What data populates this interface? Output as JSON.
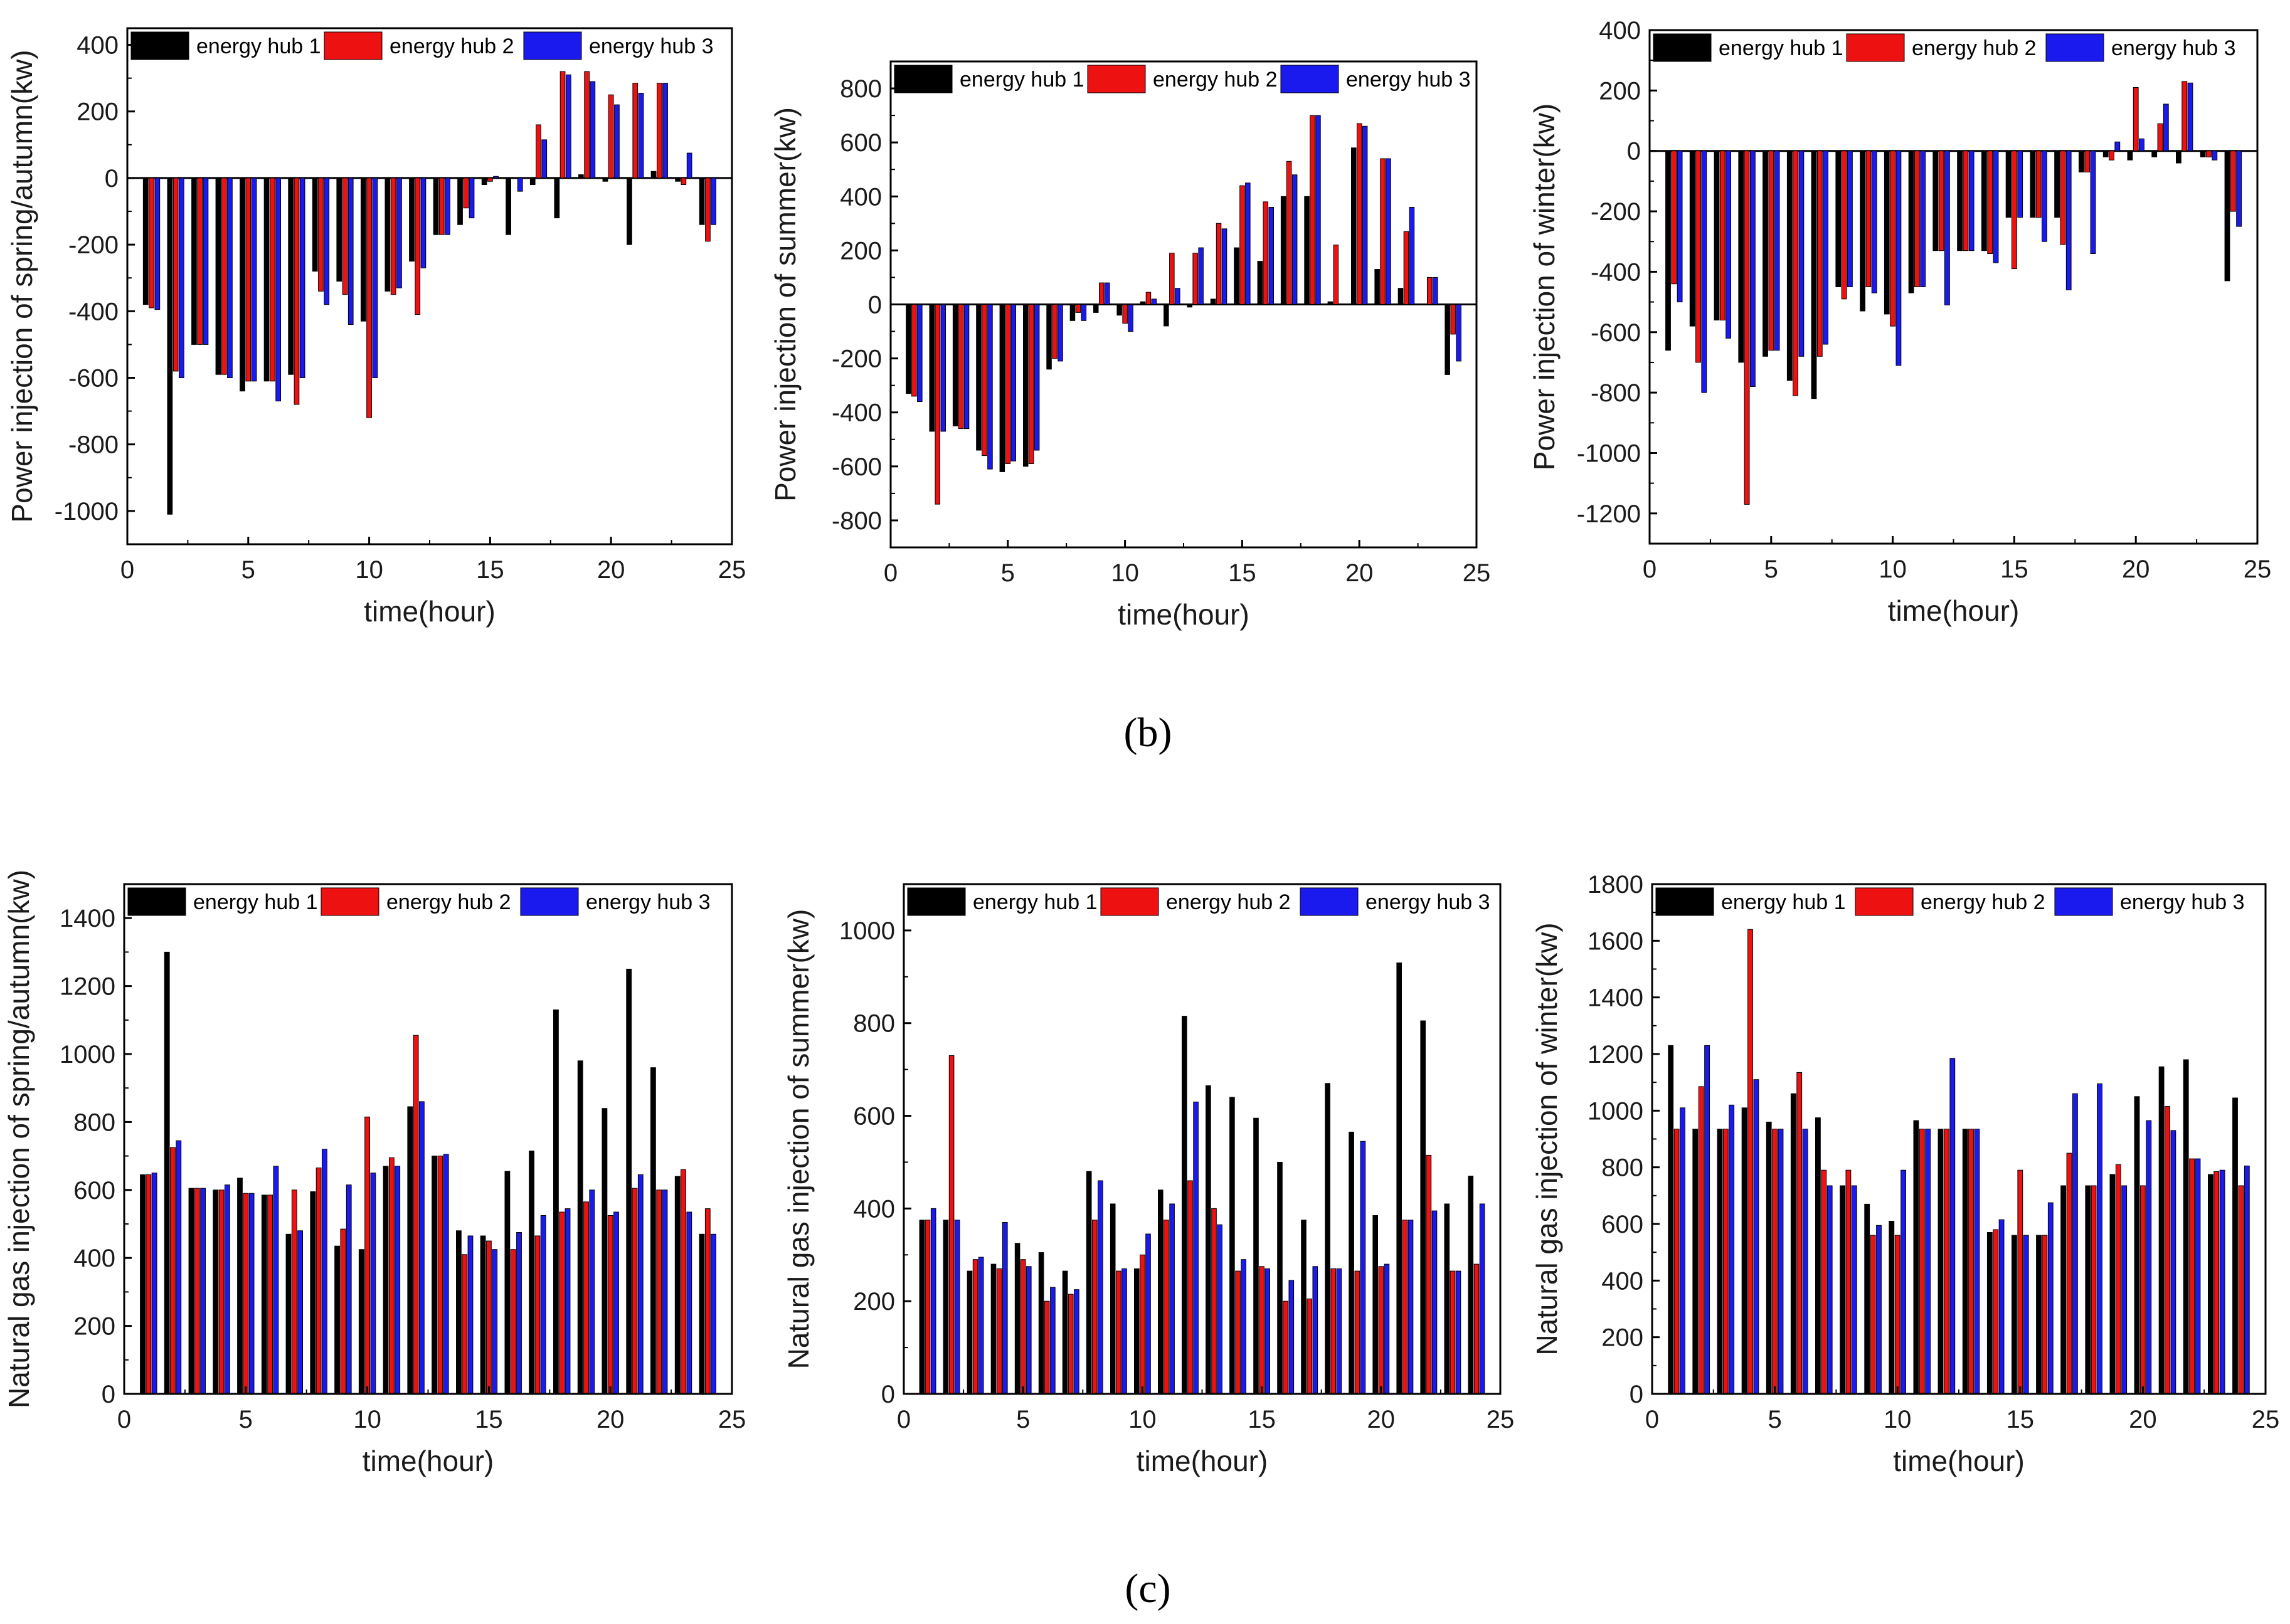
{
  "captions": {
    "b": "(b)",
    "c": "(c)"
  },
  "colors": {
    "energy hub 1": "#000000",
    "energy hub 2": "#ee1111",
    "energy hub 3": "#1a1aee"
  },
  "chart_data": [
    {
      "id": "b-spring",
      "type": "bar",
      "title": "",
      "xlabel": "time(hour)",
      "ylabel": "Power injection of spring/autumn(kw)",
      "xlim": [
        0,
        25
      ],
      "ylim": [
        -1100,
        450
      ],
      "xticks": [
        0,
        5,
        10,
        15,
        20,
        25
      ],
      "yticks": [
        -1000,
        -800,
        -600,
        -400,
        -200,
        0,
        200,
        400
      ],
      "legend": [
        "energy hub 1",
        "energy hub 2",
        "energy hub 3"
      ],
      "legend_position": "top",
      "x": [
        1,
        2,
        3,
        4,
        5,
        6,
        7,
        8,
        9,
        10,
        11,
        12,
        13,
        14,
        15,
        16,
        17,
        18,
        19,
        20,
        21,
        22,
        23,
        24
      ],
      "series": [
        {
          "name": "energy hub 1",
          "values": [
            -380,
            -1010,
            -500,
            -590,
            -640,
            -610,
            -590,
            -280,
            -310,
            -430,
            -340,
            -250,
            -170,
            -140,
            -20,
            -170,
            -20,
            -120,
            10,
            -10,
            -200,
            20,
            -10,
            -140
          ]
        },
        {
          "name": "energy hub 2",
          "values": [
            -390,
            -580,
            -500,
            -590,
            -610,
            -610,
            -680,
            -340,
            -350,
            -720,
            -350,
            -410,
            -170,
            -90,
            -10,
            0,
            160,
            320,
            320,
            250,
            285,
            285,
            -20,
            -190
          ]
        },
        {
          "name": "energy hub 3",
          "values": [
            -395,
            -600,
            -500,
            -600,
            -610,
            -670,
            -600,
            -380,
            -440,
            -600,
            -330,
            -270,
            -170,
            -120,
            5,
            -40,
            115,
            310,
            290,
            220,
            255,
            285,
            75,
            -140
          ]
        }
      ]
    },
    {
      "id": "b-summer",
      "type": "bar",
      "title": "",
      "xlabel": "time(hour)",
      "ylabel": "Power injection of summer(kw)",
      "xlim": [
        0,
        25
      ],
      "ylim": [
        -900,
        900
      ],
      "xticks": [
        0,
        5,
        10,
        15,
        20,
        25
      ],
      "yticks": [
        -800,
        -600,
        -400,
        -200,
        0,
        200,
        400,
        600,
        800
      ],
      "legend": [
        "energy hub 1",
        "energy hub 2",
        "energy hub 3"
      ],
      "legend_position": "top",
      "x": [
        1,
        2,
        3,
        4,
        5,
        6,
        7,
        8,
        9,
        10,
        11,
        12,
        13,
        14,
        15,
        16,
        17,
        18,
        19,
        20,
        21,
        22,
        23,
        24
      ],
      "series": [
        {
          "name": "energy hub 1",
          "values": [
            -330,
            -470,
            -450,
            -540,
            -620,
            -600,
            -240,
            -60,
            -30,
            -40,
            10,
            -80,
            -10,
            20,
            210,
            160,
            400,
            400,
            10,
            580,
            130,
            60,
            0,
            -260
          ]
        },
        {
          "name": "energy hub 2",
          "values": [
            -340,
            -740,
            -460,
            -560,
            -590,
            -590,
            -200,
            -30,
            80,
            -70,
            45,
            190,
            190,
            300,
            440,
            380,
            530,
            700,
            220,
            670,
            540,
            270,
            100,
            -110
          ]
        },
        {
          "name": "energy hub 3",
          "values": [
            -360,
            -470,
            -460,
            -610,
            -580,
            -540,
            -210,
            -60,
            80,
            -100,
            20,
            60,
            210,
            280,
            450,
            360,
            480,
            700,
            0,
            660,
            540,
            360,
            100,
            -210
          ]
        }
      ]
    },
    {
      "id": "b-winter",
      "type": "bar",
      "title": "",
      "xlabel": "time(hour)",
      "ylabel": "Power injection of winter(kw)",
      "xlim": [
        0,
        25
      ],
      "ylim": [
        -1300,
        400
      ],
      "xticks": [
        0,
        5,
        10,
        15,
        20,
        25
      ],
      "yticks": [
        -1200,
        -1000,
        -800,
        -600,
        -400,
        -200,
        0,
        200,
        400
      ],
      "legend": [
        "energy hub 1",
        "energy hub 2",
        "energy hub 3"
      ],
      "legend_position": "top",
      "x": [
        1,
        2,
        3,
        4,
        5,
        6,
        7,
        8,
        9,
        10,
        11,
        12,
        13,
        14,
        15,
        16,
        17,
        18,
        19,
        20,
        21,
        22,
        23,
        24
      ],
      "series": [
        {
          "name": "energy hub 1",
          "values": [
            -660,
            -580,
            -560,
            -700,
            -680,
            -760,
            -820,
            -450,
            -530,
            -540,
            -470,
            -330,
            -330,
            -330,
            -220,
            -220,
            -220,
            -70,
            -20,
            -30,
            -20,
            -40,
            -20,
            -430
          ]
        },
        {
          "name": "energy hub 2",
          "values": [
            -440,
            -700,
            -560,
            -1170,
            -660,
            -810,
            -680,
            -490,
            -450,
            -580,
            -450,
            -330,
            -330,
            -340,
            -390,
            -220,
            -310,
            -70,
            -30,
            210,
            90,
            230,
            -20,
            -200
          ]
        },
        {
          "name": "energy hub 3",
          "values": [
            -500,
            -800,
            -620,
            -780,
            -660,
            -680,
            -640,
            -450,
            -470,
            -710,
            -450,
            -510,
            -330,
            -370,
            -220,
            -300,
            -460,
            -340,
            30,
            40,
            155,
            225,
            -30,
            -250
          ]
        }
      ]
    },
    {
      "id": "c-spring",
      "type": "bar",
      "title": "",
      "xlabel": "time(hour)",
      "ylabel": "Natural gas injection of spring/autumn(kw)",
      "xlim": [
        0,
        25
      ],
      "ylim": [
        0,
        1500
      ],
      "xticks": [
        0,
        5,
        10,
        15,
        20,
        25
      ],
      "yticks": [
        0,
        200,
        400,
        600,
        800,
        1000,
        1200,
        1400
      ],
      "legend": [
        "energy hub 1",
        "energy hub 2",
        "energy hub 3"
      ],
      "legend_position": "top",
      "x": [
        1,
        2,
        3,
        4,
        5,
        6,
        7,
        8,
        9,
        10,
        11,
        12,
        13,
        14,
        15,
        16,
        17,
        18,
        19,
        20,
        21,
        22,
        23,
        24
      ],
      "series": [
        {
          "name": "energy hub 1",
          "values": [
            645,
            1300,
            605,
            600,
            635,
            585,
            470,
            595,
            435,
            425,
            670,
            845,
            700,
            480,
            465,
            655,
            715,
            1130,
            980,
            840,
            1250,
            960,
            640,
            470
          ]
        },
        {
          "name": "energy hub 2",
          "values": [
            645,
            725,
            605,
            600,
            590,
            585,
            600,
            665,
            485,
            815,
            695,
            1055,
            700,
            410,
            450,
            425,
            465,
            535,
            565,
            525,
            605,
            600,
            660,
            545
          ]
        },
        {
          "name": "energy hub 3",
          "values": [
            650,
            745,
            605,
            615,
            590,
            670,
            480,
            720,
            615,
            650,
            670,
            860,
            705,
            465,
            425,
            475,
            525,
            545,
            600,
            535,
            645,
            600,
            535,
            470
          ]
        }
      ]
    },
    {
      "id": "c-summer",
      "type": "bar",
      "title": "",
      "xlabel": "time(hour)",
      "ylabel": "Natural gas injection of summer(kw)",
      "xlim": [
        0,
        25
      ],
      "ylim": [
        0,
        1100
      ],
      "xticks": [
        0,
        5,
        10,
        15,
        20,
        25
      ],
      "yticks": [
        0,
        200,
        400,
        600,
        800,
        1000
      ],
      "legend": [
        "energy hub 1",
        "energy hub 2",
        "energy hub 3"
      ],
      "legend_position": "top",
      "x": [
        1,
        2,
        3,
        4,
        5,
        6,
        7,
        8,
        9,
        10,
        11,
        12,
        13,
        14,
        15,
        16,
        17,
        18,
        19,
        20,
        21,
        22,
        23,
        24
      ],
      "series": [
        {
          "name": "energy hub 1",
          "values": [
            375,
            375,
            265,
            280,
            325,
            305,
            265,
            480,
            410,
            270,
            440,
            815,
            665,
            640,
            595,
            500,
            375,
            670,
            565,
            385,
            930,
            805,
            410,
            470
          ]
        },
        {
          "name": "energy hub 2",
          "values": [
            375,
            730,
            290,
            270,
            290,
            200,
            215,
            375,
            265,
            300,
            375,
            460,
            400,
            265,
            275,
            200,
            205,
            270,
            265,
            275,
            375,
            515,
            265,
            280
          ]
        },
        {
          "name": "energy hub 3",
          "values": [
            400,
            375,
            295,
            370,
            275,
            230,
            225,
            460,
            270,
            345,
            410,
            630,
            365,
            290,
            270,
            245,
            275,
            270,
            545,
            280,
            375,
            395,
            265,
            410
          ]
        }
      ]
    },
    {
      "id": "c-winter",
      "type": "bar",
      "title": "",
      "xlabel": "time(hour)",
      "ylabel": "Natural gas injection of winter(kw)",
      "xlim": [
        0,
        25
      ],
      "ylim": [
        0,
        1800
      ],
      "xticks": [
        0,
        5,
        10,
        15,
        20,
        25
      ],
      "yticks": [
        0,
        200,
        400,
        600,
        800,
        1000,
        1200,
        1400,
        1600,
        1800
      ],
      "legend": [
        "energy hub 1",
        "energy hub 2",
        "energy hub 3"
      ],
      "legend_position": "top",
      "x": [
        1,
        2,
        3,
        4,
        5,
        6,
        7,
        8,
        9,
        10,
        11,
        12,
        13,
        14,
        15,
        16,
        17,
        18,
        19,
        20,
        21,
        22,
        23,
        24
      ],
      "series": [
        {
          "name": "energy hub 1",
          "values": [
            1230,
            935,
            935,
            1010,
            960,
            1060,
            975,
            735,
            670,
            610,
            965,
            935,
            935,
            570,
            560,
            560,
            735,
            735,
            775,
            1050,
            1155,
            1180,
            775,
            1045
          ]
        },
        {
          "name": "energy hub 2",
          "values": [
            935,
            1085,
            935,
            1640,
            935,
            1135,
            790,
            790,
            560,
            560,
            935,
            935,
            935,
            580,
            790,
            560,
            850,
            735,
            810,
            735,
            1015,
            830,
            785,
            735
          ]
        },
        {
          "name": "energy hub 3",
          "values": [
            1010,
            1230,
            1020,
            1110,
            935,
            935,
            735,
            735,
            595,
            790,
            935,
            1185,
            935,
            615,
            560,
            675,
            1060,
            1095,
            735,
            965,
            930,
            830,
            790,
            805
          ]
        }
      ]
    }
  ]
}
